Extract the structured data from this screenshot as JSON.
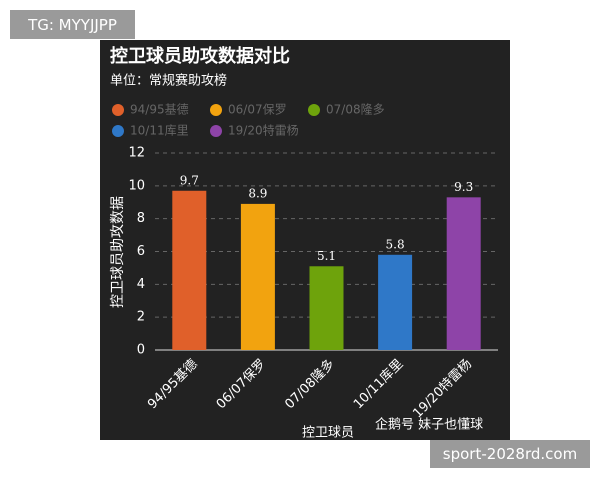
{
  "watermark": "TG: MYYJJPP",
  "footer_watermark": "sport-2028rd.com",
  "source": "企鹅号 妹子也懂球",
  "chart_data": {
    "type": "bar",
    "title": "控卫球员助攻数据对比",
    "subtitle": "单位：常规赛助攻榜",
    "categories": [
      "94/95基德",
      "06/07保罗",
      "07/08隆多",
      "10/11库里",
      "19/20特雷杨"
    ],
    "values": [
      9.7,
      8.9,
      5.1,
      5.8,
      9.3
    ],
    "colors": [
      "#e0602a",
      "#f2a30f",
      "#6ea30c",
      "#2f78c8",
      "#8e44a8"
    ],
    "ylim": [
      0,
      12
    ],
    "yticks": [
      0,
      2,
      4,
      6,
      8,
      10,
      12
    ],
    "y_label": "控卫球员助攻数据",
    "x_label": "控卫球员",
    "grid": true
  }
}
